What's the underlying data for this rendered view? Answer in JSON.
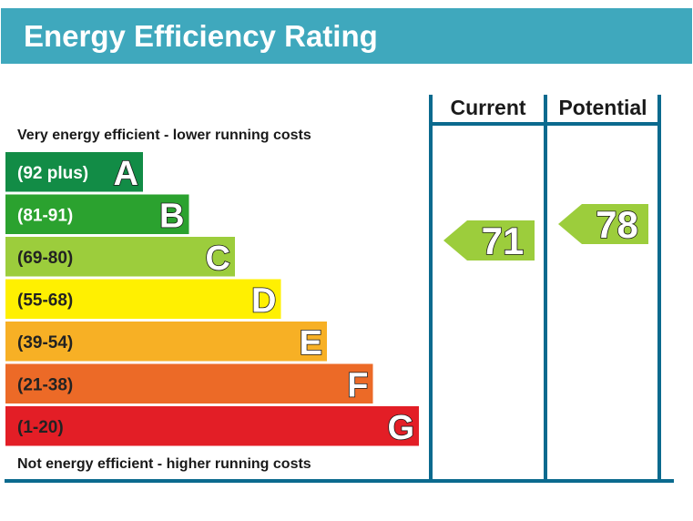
{
  "header": {
    "title": "Energy Efficiency Rating"
  },
  "columns": {
    "current": "Current",
    "potential": "Potential"
  },
  "captions": {
    "top": "Very energy efficient - lower running costs",
    "bottom": "Not energy efficient - higher running costs"
  },
  "chart_data": {
    "type": "bar",
    "title": "Energy Efficiency Rating",
    "bands": [
      {
        "letter": "A",
        "range": "(92 plus)",
        "color": "#128c46",
        "light_text": true
      },
      {
        "letter": "B",
        "range": "(81-91)",
        "color": "#2ba22f",
        "light_text": true
      },
      {
        "letter": "C",
        "range": "(69-80)",
        "color": "#9ccd3c",
        "light_text": false
      },
      {
        "letter": "D",
        "range": "(55-68)",
        "color": "#fff001",
        "light_text": false
      },
      {
        "letter": "E",
        "range": "(39-54)",
        "color": "#f7b025",
        "light_text": false
      },
      {
        "letter": "F",
        "range": "(21-38)",
        "color": "#ec6a27",
        "light_text": false
      },
      {
        "letter": "G",
        "range": "(1-20)",
        "color": "#e31e26",
        "light_text": false
      }
    ],
    "current": {
      "value": 71,
      "band": "C",
      "color": "#9ccd3c"
    },
    "potential": {
      "value": 78,
      "band": "C",
      "color": "#9ccd3c"
    },
    "colors": {
      "frame": "#0b6a8e",
      "header": "#3fa8bd"
    }
  }
}
